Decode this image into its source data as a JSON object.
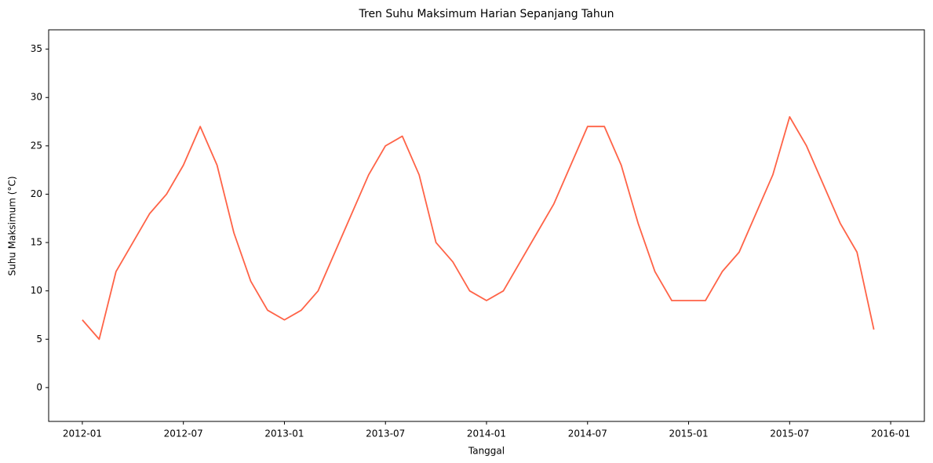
{
  "chart_data": {
    "type": "line",
    "title": "Tren Suhu Maksimum Harian Sepanjang Tahun",
    "x_label": "Tanggal",
    "y_label": "Suhu Maksimum (°C)",
    "x": [
      "2012-01",
      "2012-02",
      "2012-03",
      "2012-04",
      "2012-05",
      "2012-06",
      "2012-07",
      "2012-08",
      "2012-09",
      "2012-10",
      "2012-11",
      "2012-12",
      "2013-01",
      "2013-02",
      "2013-03",
      "2013-04",
      "2013-05",
      "2013-06",
      "2013-07",
      "2013-08",
      "2013-09",
      "2013-10",
      "2013-11",
      "2013-12",
      "2014-01",
      "2014-02",
      "2014-03",
      "2014-04",
      "2014-05",
      "2014-06",
      "2014-07",
      "2014-08",
      "2014-09",
      "2014-10",
      "2014-11",
      "2014-12",
      "2015-01",
      "2015-02",
      "2015-03",
      "2015-04",
      "2015-05",
      "2015-06",
      "2015-07",
      "2015-08",
      "2015-09",
      "2015-10",
      "2015-11",
      "2015-12"
    ],
    "series": [
      {
        "name": "Suhu Maksimum",
        "color": "#ff6347",
        "values": [
          7,
          5,
          12,
          15,
          18,
          20,
          23,
          27,
          23,
          16,
          11,
          8,
          7,
          8,
          10,
          14,
          18,
          22,
          25,
          26,
          22,
          15,
          13,
          10,
          9,
          10,
          13,
          16,
          19,
          23,
          27,
          27,
          23,
          17,
          12,
          9,
          9,
          9,
          12,
          14,
          18,
          22,
          28,
          25,
          21,
          17,
          14,
          6
        ]
      }
    ],
    "xlim": [
      "2011-11",
      "2016-03"
    ],
    "xticks": [
      "2012-01",
      "2012-07",
      "2013-01",
      "2013-07",
      "2014-01",
      "2014-07",
      "2015-01",
      "2015-07",
      "2016-01"
    ],
    "ylim": [
      -3.5,
      37
    ],
    "yticks": [
      0,
      5,
      10,
      15,
      20,
      25,
      30,
      35
    ],
    "grid": false
  }
}
